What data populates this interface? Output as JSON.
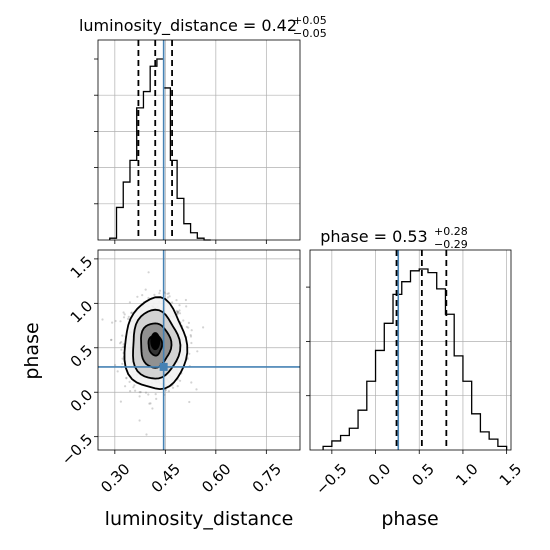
{
  "chart_data": [
    {
      "type": "histogram",
      "panel": "luminosity_distance marginal",
      "title_main": "luminosity_distance = 0.42",
      "title_sup": "+0.05",
      "title_sub": "−0.05",
      "xlim": [
        0.25,
        0.85
      ],
      "bin_edges": [
        0.285,
        0.305,
        0.325,
        0.345,
        0.365,
        0.385,
        0.405,
        0.425,
        0.445,
        0.465,
        0.485,
        0.505,
        0.525,
        0.545,
        0.565,
        0.585
      ],
      "counts": [
        0.01,
        0.18,
        0.32,
        0.44,
        0.73,
        0.82,
        0.96,
        1.0,
        0.84,
        0.44,
        0.23,
        0.09,
        0.04,
        0.01,
        0.0
      ],
      "quantiles": [
        0.37,
        0.42,
        0.47
      ],
      "truth": 0.445,
      "grid": true
    },
    {
      "type": "scatter",
      "panel": "luminosity_distance vs phase",
      "xlabel": "luminosity_distance",
      "ylabel": "phase",
      "xlim": [
        0.25,
        0.85
      ],
      "ylim": [
        -0.65,
        1.6
      ],
      "xticks": [
        "0.30",
        "0.45",
        "0.60",
        "0.75"
      ],
      "yticks": [
        "−0.5",
        "0.0",
        "0.5",
        "1.0",
        "1.5"
      ],
      "center": [
        0.42,
        0.53
      ],
      "spread": [
        0.045,
        0.25
      ],
      "contour_levels": [
        0.12,
        0.28,
        0.5,
        0.8
      ],
      "truth": [
        0.445,
        0.285
      ],
      "grid": true
    },
    {
      "type": "histogram",
      "panel": "phase marginal",
      "title_main": "phase = 0.53",
      "title_sup": "+0.28",
      "title_sub": "−0.29",
      "xlabel": "phase",
      "xlim": [
        -0.75,
        1.55
      ],
      "xticks": [
        "−0.5",
        "0.0",
        "0.5",
        "1.0",
        "1.5"
      ],
      "bin_edges": [
        -0.6,
        -0.5,
        -0.4,
        -0.3,
        -0.2,
        -0.1,
        0.0,
        0.1,
        0.2,
        0.3,
        0.4,
        0.5,
        0.6,
        0.7,
        0.8,
        0.9,
        1.0,
        1.1,
        1.2,
        1.3,
        1.4,
        1.5
      ],
      "counts": [
        0.02,
        0.05,
        0.08,
        0.12,
        0.22,
        0.38,
        0.55,
        0.7,
        0.86,
        0.93,
        0.99,
        1.0,
        0.98,
        0.89,
        0.75,
        0.52,
        0.38,
        0.2,
        0.1,
        0.06,
        0.02
      ],
      "quantiles": [
        0.24,
        0.53,
        0.81
      ],
      "truth": 0.26,
      "grid": true
    }
  ],
  "colors": {
    "truth": "#4682b4",
    "line": "#000000",
    "grid": "#b0b0b0",
    "points": "#808080"
  }
}
